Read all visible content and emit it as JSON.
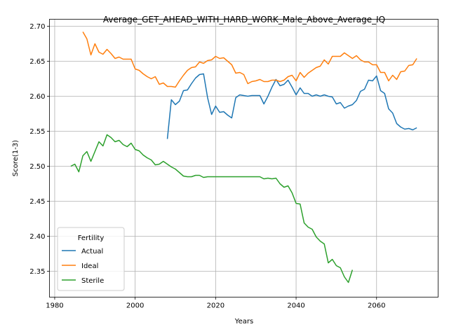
{
  "chart_data": {
    "type": "line",
    "title": "Average_GET_AHEAD_WITH_HARD_WORK_Male_Above_Average_IQ",
    "xlabel": "Years",
    "ylabel": "Score(1-3)",
    "xlim": [
      1978.7,
      2075.3
    ],
    "ylim": [
      2.313,
      2.71
    ],
    "xticks": [
      1980,
      2000,
      2020,
      2040,
      2060
    ],
    "yticks": [
      2.35,
      2.4,
      2.45,
      2.5,
      2.55,
      2.6,
      2.65,
      2.7
    ],
    "grid": true,
    "legend": {
      "title": "Fertility",
      "placement": "lower-left"
    },
    "series": [
      {
        "name": "Actual",
        "color": "#1f77b4",
        "x": [
          2008,
          2009,
          2010,
          2011,
          2012,
          2013,
          2014,
          2015,
          2016,
          2017,
          2018,
          2019,
          2020,
          2021,
          2022,
          2023,
          2024,
          2025,
          2026,
          2027,
          2028,
          2029,
          2030,
          2031,
          2032,
          2033,
          2034,
          2035,
          2036,
          2037,
          2038,
          2039,
          2040,
          2041,
          2042,
          2043,
          2044,
          2045,
          2046,
          2047,
          2048,
          2049,
          2050,
          2051,
          2052,
          2053,
          2054,
          2055,
          2056,
          2057,
          2058,
          2059,
          2060,
          2061,
          2062,
          2063,
          2064,
          2065,
          2066,
          2067,
          2068,
          2069,
          2070
        ],
        "y": [
          2.539,
          2.595,
          2.588,
          2.593,
          2.608,
          2.609,
          2.618,
          2.626,
          2.631,
          2.632,
          2.598,
          2.574,
          2.586,
          2.577,
          2.578,
          2.573,
          2.569,
          2.598,
          2.602,
          2.601,
          2.6,
          2.601,
          2.601,
          2.601,
          2.589,
          2.6,
          2.613,
          2.624,
          2.615,
          2.617,
          2.623,
          2.613,
          2.602,
          2.612,
          2.604,
          2.604,
          2.6,
          2.602,
          2.6,
          2.602,
          2.6,
          2.599,
          2.589,
          2.591,
          2.583,
          2.586,
          2.588,
          2.594,
          2.607,
          2.61,
          2.623,
          2.622,
          2.629,
          2.608,
          2.604,
          2.582,
          2.576,
          2.561,
          2.556,
          2.553,
          2.554,
          2.552,
          2.555
        ]
      },
      {
        "name": "Ideal",
        "color": "#ff7f0e",
        "x": [
          1987,
          1988,
          1989,
          1990,
          1991,
          1992,
          1993,
          1994,
          1995,
          1996,
          1997,
          1998,
          1999,
          2000,
          2001,
          2002,
          2003,
          2004,
          2005,
          2006,
          2007,
          2008,
          2009,
          2010,
          2011,
          2012,
          2013,
          2014,
          2015,
          2016,
          2017,
          2018,
          2019,
          2020,
          2021,
          2022,
          2023,
          2024,
          2025,
          2026,
          2027,
          2028,
          2029,
          2030,
          2031,
          2032,
          2033,
          2034,
          2035,
          2036,
          2037,
          2038,
          2039,
          2040,
          2041,
          2042,
          2043,
          2044,
          2045,
          2046,
          2047,
          2048,
          2049,
          2050,
          2051,
          2052,
          2053,
          2054,
          2055,
          2056,
          2057,
          2058,
          2059,
          2060,
          2061,
          2062,
          2063,
          2064,
          2065,
          2066,
          2067,
          2068,
          2069,
          2070
        ],
        "y": [
          2.692,
          2.682,
          2.659,
          2.675,
          2.663,
          2.66,
          2.667,
          2.661,
          2.654,
          2.656,
          2.653,
          2.653,
          2.653,
          2.639,
          2.637,
          2.632,
          2.628,
          2.625,
          2.628,
          2.617,
          2.619,
          2.614,
          2.614,
          2.613,
          2.622,
          2.63,
          2.637,
          2.641,
          2.642,
          2.649,
          2.647,
          2.651,
          2.652,
          2.657,
          2.654,
          2.655,
          2.65,
          2.645,
          2.633,
          2.634,
          2.631,
          2.618,
          2.621,
          2.622,
          2.624,
          2.621,
          2.621,
          2.623,
          2.623,
          2.621,
          2.623,
          2.628,
          2.63,
          2.622,
          2.634,
          2.627,
          2.633,
          2.637,
          2.641,
          2.643,
          2.652,
          2.646,
          2.657,
          2.657,
          2.657,
          2.662,
          2.658,
          2.654,
          2.658,
          2.652,
          2.649,
          2.649,
          2.645,
          2.645,
          2.634,
          2.634,
          2.622,
          2.63,
          2.624,
          2.635,
          2.636,
          2.644,
          2.645,
          2.654
        ]
      },
      {
        "name": "Sterile",
        "color": "#2ca02c",
        "x": [
          1984,
          1985,
          1986,
          1987,
          1988,
          1989,
          1990,
          1991,
          1992,
          1993,
          1994,
          1995,
          1996,
          1997,
          1998,
          1999,
          2000,
          2001,
          2002,
          2003,
          2004,
          2005,
          2006,
          2007,
          2008,
          2009,
          2010,
          2011,
          2012,
          2013,
          2014,
          2015,
          2016,
          2017,
          2018,
          2019,
          2020,
          2021,
          2022,
          2023,
          2024,
          2025,
          2026,
          2027,
          2028,
          2029,
          2030,
          2031,
          2032,
          2033,
          2034,
          2035,
          2036,
          2037,
          2038,
          2039,
          2040,
          2041,
          2042,
          2043,
          2044,
          2045,
          2046,
          2047,
          2048,
          2049,
          2050,
          2051,
          2052,
          2053,
          2054
        ],
        "y": [
          2.5,
          2.503,
          2.492,
          2.515,
          2.521,
          2.507,
          2.521,
          2.535,
          2.529,
          2.545,
          2.541,
          2.535,
          2.537,
          2.531,
          2.528,
          2.533,
          2.524,
          2.522,
          2.516,
          2.512,
          2.509,
          2.502,
          2.503,
          2.507,
          2.503,
          2.499,
          2.496,
          2.491,
          2.486,
          2.485,
          2.485,
          2.487,
          2.487,
          2.484,
          2.485,
          2.485,
          2.485,
          2.485,
          2.485,
          2.485,
          2.485,
          2.485,
          2.485,
          2.485,
          2.485,
          2.485,
          2.485,
          2.485,
          2.482,
          2.483,
          2.482,
          2.483,
          2.475,
          2.47,
          2.472,
          2.462,
          2.447,
          2.446,
          2.419,
          2.413,
          2.41,
          2.399,
          2.393,
          2.389,
          2.362,
          2.367,
          2.358,
          2.355,
          2.342,
          2.334,
          2.352
        ]
      }
    ]
  }
}
